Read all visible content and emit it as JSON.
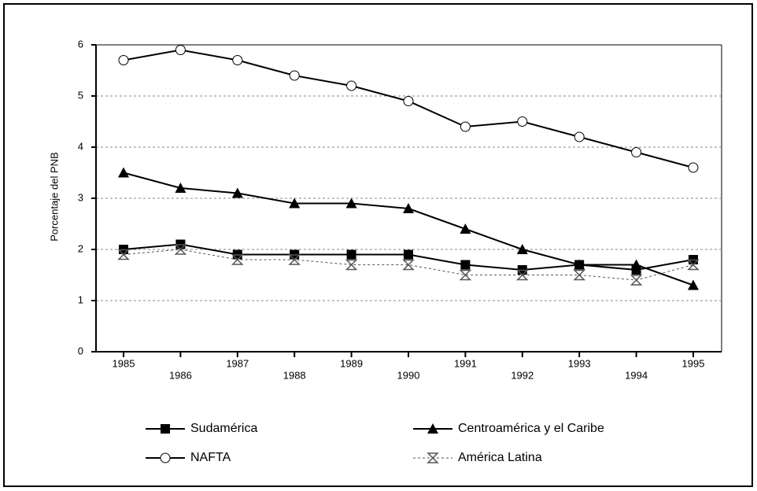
{
  "chart_data": {
    "type": "line",
    "ylabel": "Porcentaje del PNB",
    "categories": [
      "1985",
      "1986",
      "1987",
      "1988",
      "1989",
      "1990",
      "1991",
      "1992",
      "1993",
      "1994",
      "1995"
    ],
    "series": [
      {
        "name": "Sudamérica",
        "color": "#000000",
        "marker": "square",
        "dash": false,
        "values": [
          2.0,
          2.1,
          1.9,
          1.9,
          1.9,
          1.9,
          1.7,
          1.6,
          1.7,
          1.6,
          1.8
        ]
      },
      {
        "name": "Centroamérica y el Caribe",
        "color": "#000000",
        "marker": "triangle",
        "dash": false,
        "values": [
          3.5,
          3.2,
          3.1,
          2.9,
          2.9,
          2.8,
          2.4,
          2.0,
          1.7,
          1.7,
          1.3
        ]
      },
      {
        "name": "NAFTA",
        "color": "#000000",
        "marker": "circle",
        "dash": false,
        "values": [
          5.7,
          5.9,
          5.7,
          5.4,
          5.2,
          4.9,
          4.4,
          4.5,
          4.2,
          3.9,
          3.6
        ]
      },
      {
        "name": "América Latina",
        "color": "#555555",
        "marker": "hourglass",
        "dash": true,
        "values": [
          1.9,
          2.0,
          1.8,
          1.8,
          1.7,
          1.7,
          1.5,
          1.5,
          1.5,
          1.4,
          1.7
        ]
      }
    ],
    "ylim": [
      0,
      6
    ],
    "yticks": [
      0,
      1,
      2,
      3,
      4,
      5,
      6
    ],
    "grid": true
  }
}
